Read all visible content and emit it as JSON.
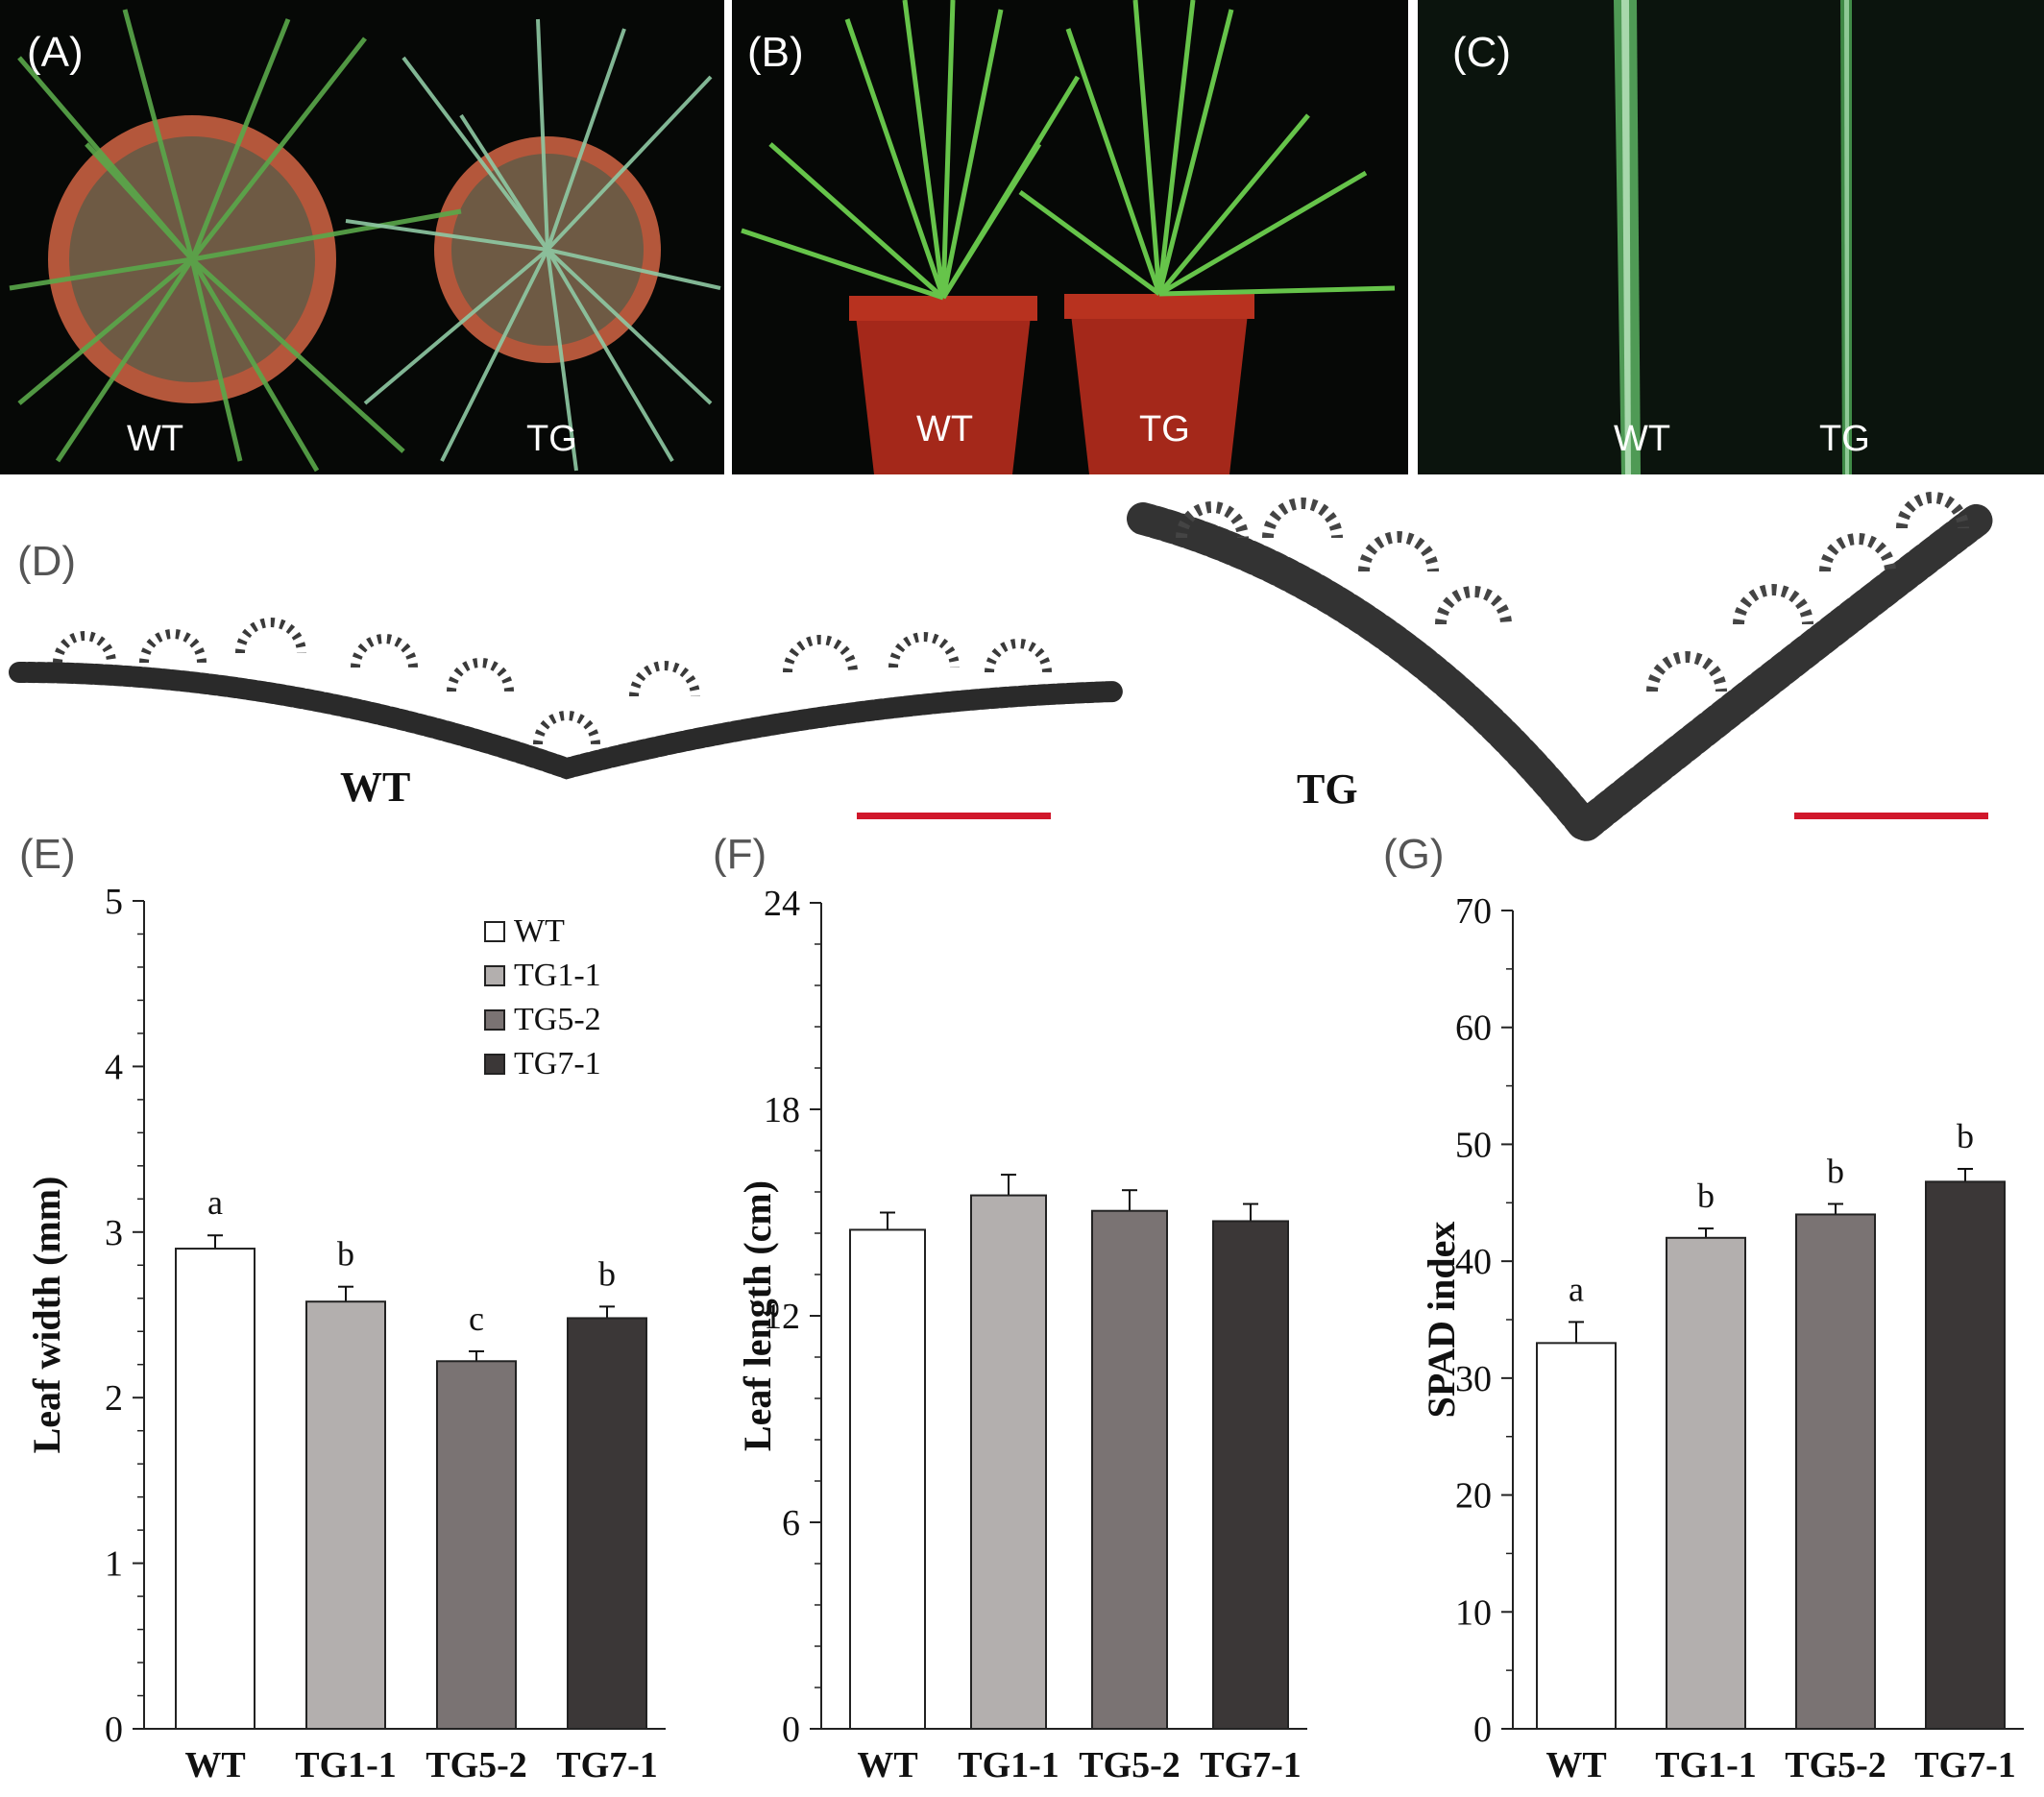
{
  "panels": {
    "A": {
      "label": "(A)",
      "left_tag": "WT",
      "right_tag": "TG"
    },
    "B": {
      "label": "(B)",
      "left_tag": "WT",
      "right_tag": "TG"
    },
    "C": {
      "label": "(C)",
      "left_tag": "WT",
      "right_tag": "TG"
    },
    "D": {
      "label": "(D)",
      "left_caption": "WT",
      "right_caption": "TG",
      "scalebar_color": "#d0172b"
    }
  },
  "chart_data": [
    {
      "panel": "(E)",
      "type": "bar",
      "categories": [
        "WT",
        "TG1-1",
        "TG5-2",
        "TG7-1"
      ],
      "values": [
        2.9,
        2.58,
        2.22,
        2.48
      ],
      "errors": [
        0.08,
        0.09,
        0.06,
        0.07
      ],
      "significance": [
        "a",
        "b",
        "c",
        "b"
      ],
      "ylabel": "Leaf width (mm)",
      "ylim": [
        0,
        5
      ],
      "yticks": [
        "0",
        "1",
        "2",
        "3",
        "4",
        "5"
      ],
      "legend": {
        "placement": "top-right",
        "entries": [
          "WT",
          "TG1-1",
          "TG5-2",
          "TG7-1"
        ]
      },
      "colors": [
        "#ffffff",
        "#b3afae",
        "#7a7373",
        "#3b3737"
      ]
    },
    {
      "panel": "(F)",
      "type": "bar",
      "categories": [
        "WT",
        "TG1-1",
        "TG5-2",
        "TG7-1"
      ],
      "values": [
        14.5,
        15.5,
        15.05,
        14.75
      ],
      "errors": [
        0.5,
        0.6,
        0.6,
        0.5
      ],
      "significance": [
        "",
        "",
        "",
        ""
      ],
      "ylabel": "Leaf length (cm)",
      "ylim": [
        0,
        24
      ],
      "yticks": [
        "0",
        "6",
        "12",
        "18",
        "24"
      ],
      "colors": [
        "#ffffff",
        "#b3afae",
        "#7a7373",
        "#3b3737"
      ]
    },
    {
      "panel": "(G)",
      "type": "bar",
      "categories": [
        "WT",
        "TG1-1",
        "TG5-2",
        "TG7-1"
      ],
      "values": [
        33,
        42,
        44,
        46.8
      ],
      "errors": [
        1.8,
        0.8,
        0.9,
        1.1
      ],
      "significance": [
        "a",
        "b",
        "b",
        "b"
      ],
      "ylabel": "SPAD index",
      "ylim": [
        0,
        70
      ],
      "yticks": [
        "0",
        "10",
        "20",
        "30",
        "40",
        "50",
        "60",
        "70"
      ],
      "colors": [
        "#ffffff",
        "#b3afae",
        "#7a7373",
        "#3b3737"
      ]
    }
  ]
}
